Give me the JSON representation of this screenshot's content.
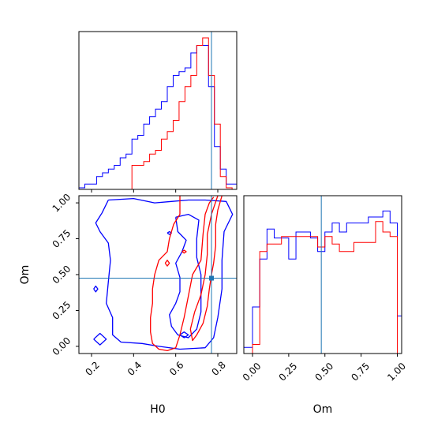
{
  "chart_data": {
    "type": "corner",
    "parameters": [
      "H0",
      "Om"
    ],
    "truth": {
      "H0": 0.77,
      "Om": 0.475
    },
    "colors": {
      "series_a": "#0000ff",
      "series_b": "#ff0000",
      "truth": "#1f77b4"
    },
    "panels": [
      {
        "id": "hist_H0",
        "type": "histogram",
        "parameter": "H0",
        "xlim": [
          0.14,
          0.89
        ],
        "grid": false,
        "series": [
          {
            "color": "#0000ff",
            "bin_edges": [
              0.14,
              0.168,
              0.196,
              0.224,
              0.252,
              0.28,
              0.308,
              0.336,
              0.364,
              0.392,
              0.42,
              0.448,
              0.476,
              0.504,
              0.532,
              0.56,
              0.588,
              0.616,
              0.644,
              0.672,
              0.7,
              0.728,
              0.756,
              0.784,
              0.812,
              0.84,
              0.868,
              0.89
            ],
            "counts": [
              0,
              1,
              1,
              3,
              4,
              5,
              6,
              8,
              9,
              13,
              14,
              17,
              19,
              21,
              23,
              27,
              30,
              31,
              32,
              36,
              38,
              38,
              27,
              11,
              5,
              1,
              1
            ]
          },
          {
            "color": "#ff0000",
            "bin_edges": [
              0.392,
              0.42,
              0.448,
              0.476,
              0.504,
              0.532,
              0.56,
              0.588,
              0.616,
              0.644,
              0.672,
              0.7,
              0.728,
              0.756,
              0.784,
              0.812,
              0.84,
              0.868
            ],
            "counts": [
              6,
              6,
              7,
              9,
              10,
              13,
              15,
              18,
              23,
              27,
              30,
              38,
              40,
              30,
              17,
              3,
              0
            ]
          }
        ]
      },
      {
        "id": "contour_H0_Om",
        "type": "contour",
        "xlabel": "H0",
        "ylabel": "Om",
        "xlim": [
          0.14,
          0.89
        ],
        "ylim": [
          -0.05,
          1.05
        ],
        "xticks": [
          0.2,
          0.4,
          0.6,
          0.8
        ],
        "xtick_labels": [
          "0.2",
          "0.4",
          "0.6",
          "0.8"
        ],
        "yticks": [
          0.0,
          0.25,
          0.5,
          0.75,
          1.0
        ],
        "ytick_labels": [
          "0.00",
          "0.25",
          "0.50",
          "0.75",
          "1.00"
        ],
        "grid": false,
        "series": [
          {
            "color": "#0000ff",
            "contours": [
              [
                [
                  0.28,
                  1.02
                ],
                [
                  0.4,
                  1.03
                ],
                [
                  0.5,
                  1.0
                ],
                [
                  0.58,
                  1.01
                ],
                [
                  0.66,
                  1.02
                ],
                [
                  0.74,
                  1.02
                ],
                [
                  0.84,
                  1.01
                ],
                [
                  0.87,
                  0.92
                ],
                [
                  0.83,
                  0.8
                ],
                [
                  0.82,
                  0.6
                ],
                [
                  0.82,
                  0.4
                ],
                [
                  0.8,
                  0.2
                ],
                [
                  0.78,
                  0.06
                ],
                [
                  0.74,
                  -0.01
                ],
                [
                  0.62,
                  -0.02
                ],
                [
                  0.52,
                  0.0
                ],
                [
                  0.44,
                  0.02
                ],
                [
                  0.34,
                  0.03
                ],
                [
                  0.3,
                  0.08
                ],
                [
                  0.3,
                  0.2
                ],
                [
                  0.27,
                  0.3
                ],
                [
                  0.28,
                  0.45
                ],
                [
                  0.29,
                  0.6
                ],
                [
                  0.28,
                  0.72
                ],
                [
                  0.24,
                  0.8
                ],
                [
                  0.22,
                  0.86
                ],
                [
                  0.25,
                  0.93
                ],
                [
                  0.28,
                  1.02
                ]
              ],
              [
                [
                  0.6,
                  0.9
                ],
                [
                  0.66,
                  0.92
                ],
                [
                  0.71,
                  0.88
                ],
                [
                  0.7,
                  0.75
                ],
                [
                  0.7,
                  0.62
                ],
                [
                  0.72,
                  0.5
                ],
                [
                  0.72,
                  0.38
                ],
                [
                  0.72,
                  0.24
                ],
                [
                  0.7,
                  0.12
                ],
                [
                  0.66,
                  0.06
                ],
                [
                  0.61,
                  0.08
                ],
                [
                  0.58,
                  0.14
                ],
                [
                  0.57,
                  0.22
                ],
                [
                  0.6,
                  0.3
                ],
                [
                  0.62,
                  0.38
                ],
                [
                  0.62,
                  0.48
                ],
                [
                  0.6,
                  0.58
                ],
                [
                  0.63,
                  0.66
                ],
                [
                  0.65,
                  0.74
                ],
                [
                  0.61,
                  0.8
                ],
                [
                  0.6,
                  0.9
                ]
              ],
              [
                [
                  0.21,
                  0.05
                ],
                [
                  0.24,
                  0.09
                ],
                [
                  0.27,
                  0.05
                ],
                [
                  0.24,
                  0.01
                ],
                [
                  0.21,
                  0.05
                ]
              ],
              [
                [
                  0.21,
                  0.4
                ],
                [
                  0.22,
                  0.42
                ],
                [
                  0.23,
                  0.4
                ],
                [
                  0.22,
                  0.38
                ],
                [
                  0.21,
                  0.4
                ]
              ],
              [
                [
                  0.62,
                  0.08
                ],
                [
                  0.64,
                  0.1
                ],
                [
                  0.66,
                  0.08
                ],
                [
                  0.64,
                  0.06
                ],
                [
                  0.62,
                  0.08
                ]
              ],
              [
                [
                  0.56,
                  0.79
                ],
                [
                  0.57,
                  0.8
                ],
                [
                  0.58,
                  0.79
                ],
                [
                  0.57,
                  0.78
                ],
                [
                  0.56,
                  0.79
                ]
              ]
            ]
          },
          {
            "color": "#ff0000",
            "contours": [
              [
                [
                  0.62,
                  1.05
                ],
                [
                  0.62,
                  0.92
                ],
                [
                  0.59,
                  0.85
                ],
                [
                  0.57,
                  0.75
                ],
                [
                  0.56,
                  0.66
                ],
                [
                  0.52,
                  0.6
                ],
                [
                  0.5,
                  0.5
                ],
                [
                  0.49,
                  0.4
                ],
                [
                  0.49,
                  0.3
                ],
                [
                  0.48,
                  0.2
                ],
                [
                  0.48,
                  0.1
                ],
                [
                  0.49,
                  0.02
                ],
                [
                  0.52,
                  -0.02
                ],
                [
                  0.56,
                  -0.03
                ],
                [
                  0.6,
                  -0.01
                ],
                [
                  0.62,
                  0.08
                ],
                [
                  0.64,
                  0.2
                ],
                [
                  0.66,
                  0.35
                ],
                [
                  0.68,
                  0.5
                ],
                [
                  0.72,
                  0.6
                ],
                [
                  0.73,
                  0.78
                ],
                [
                  0.74,
                  0.92
                ],
                [
                  0.76,
                  1.0
                ],
                [
                  0.78,
                  1.04
                ]
              ],
              [
                [
                  0.82,
                  1.05
                ],
                [
                  0.8,
                  0.95
                ],
                [
                  0.79,
                  0.85
                ],
                [
                  0.79,
                  0.7
                ],
                [
                  0.78,
                  0.58
                ],
                [
                  0.77,
                  0.5
                ],
                [
                  0.76,
                  0.4
                ],
                [
                  0.75,
                  0.28
                ],
                [
                  0.73,
                  0.16
                ],
                [
                  0.7,
                  0.08
                ],
                [
                  0.68,
                  0.04
                ],
                [
                  0.67,
                  0.12
                ],
                [
                  0.69,
                  0.24
                ],
                [
                  0.72,
                  0.36
                ],
                [
                  0.74,
                  0.5
                ],
                [
                  0.75,
                  0.64
                ],
                [
                  0.75,
                  0.78
                ],
                [
                  0.77,
                  0.92
                ],
                [
                  0.8,
                  1.05
                ]
              ],
              [
                [
                  0.55,
                  0.58
                ],
                [
                  0.56,
                  0.6
                ],
                [
                  0.57,
                  0.58
                ],
                [
                  0.56,
                  0.56
                ],
                [
                  0.55,
                  0.58
                ]
              ],
              [
                [
                  0.63,
                  0.66
                ],
                [
                  0.64,
                  0.67
                ],
                [
                  0.65,
                  0.66
                ],
                [
                  0.64,
                  0.65
                ],
                [
                  0.63,
                  0.66
                ]
              ]
            ]
          }
        ]
      },
      {
        "id": "hist_Om",
        "type": "histogram",
        "parameter": "Om",
        "xlabel": "Om",
        "xlim": [
          -0.06,
          1.03
        ],
        "xticks": [
          0.0,
          0.25,
          0.5,
          0.75,
          1.0
        ],
        "xtick_labels": [
          "0.00",
          "0.25",
          "0.50",
          "0.75",
          "1.00"
        ],
        "grid": false,
        "series": [
          {
            "color": "#0000ff",
            "bin_edges": [
              -0.06,
              0.0,
              0.05,
              0.1,
              0.15,
              0.2,
              0.25,
              0.3,
              0.35,
              0.4,
              0.45,
              0.5,
              0.55,
              0.6,
              0.65,
              0.7,
              0.75,
              0.8,
              0.85,
              0.9,
              0.95,
              1.0,
              1.03
            ],
            "counts": [
              3,
              30,
              62,
              82,
              76,
              76,
              62,
              80,
              80,
              76,
              67,
              80,
              86,
              80,
              86,
              86,
              86,
              90,
              90,
              94,
              86,
              24
            ]
          },
          {
            "color": "#ff0000",
            "bin_edges": [
              0.0,
              0.05,
              0.1,
              0.15,
              0.2,
              0.25,
              0.3,
              0.35,
              0.4,
              0.45,
              0.5,
              0.55,
              0.6,
              0.65,
              0.7,
              0.75,
              0.8,
              0.85,
              0.9,
              0.95,
              1.0
            ],
            "counts": [
              5,
              67,
              72,
              72,
              77,
              77,
              77,
              77,
              77,
              70,
              77,
              72,
              67,
              67,
              73,
              73,
              73,
              87,
              80,
              77
            ]
          }
        ]
      }
    ]
  }
}
